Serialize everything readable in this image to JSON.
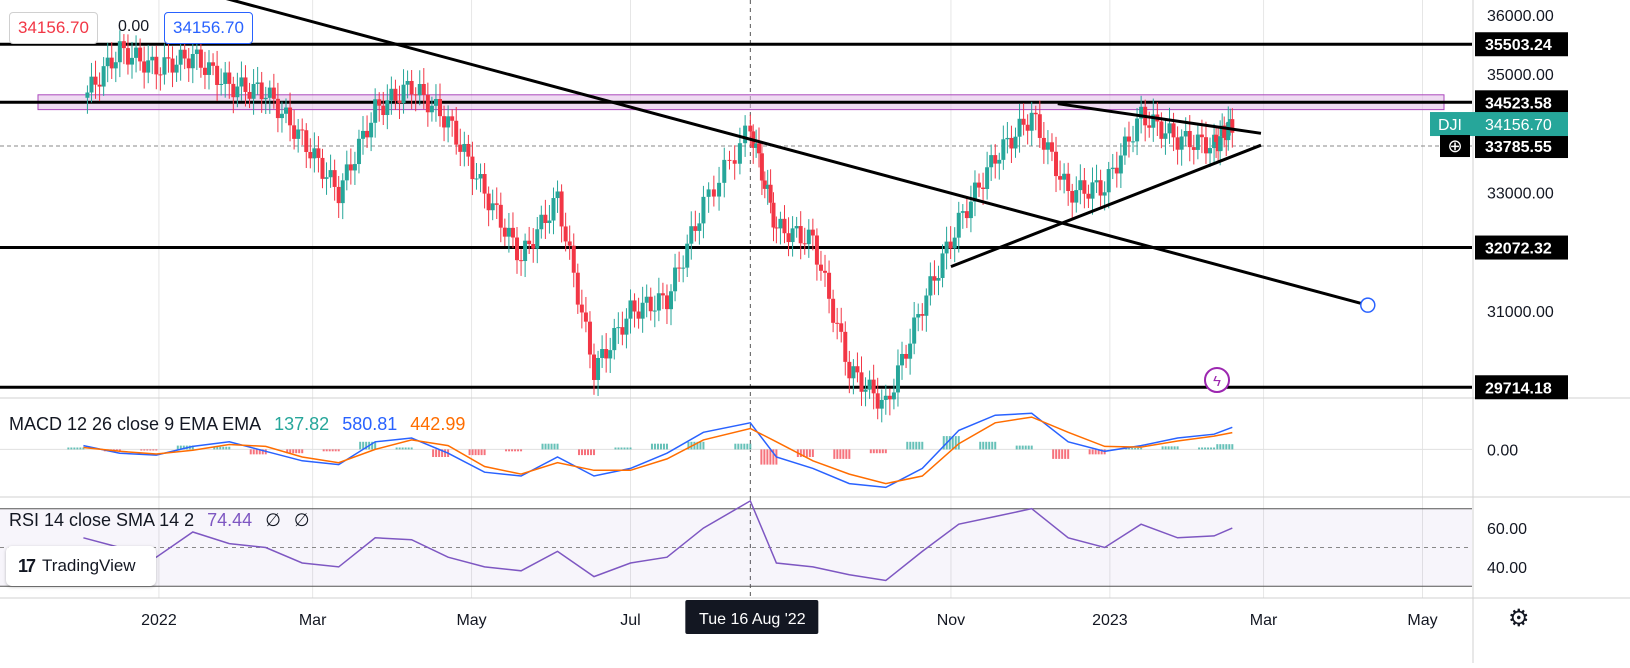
{
  "header": {
    "ohlc_open": "34156.70",
    "ohlc_change": "0.00",
    "ohlc_close": "34156.70"
  },
  "colors": {
    "up": "#26a69a",
    "down": "#f23645",
    "macd_line": "#2962ff",
    "signal_line": "#ff6d00",
    "rsi_line": "#7e57c2",
    "resistance_zone_fill": "#e1bee7",
    "resistance_zone_border": "#ab47bc",
    "trendline": "#000000",
    "symbol_badge": "#26a69a"
  },
  "branding": {
    "logo_text": "TradingView"
  },
  "chart_data": [
    {
      "type": "candlestick",
      "symbol": "DJI",
      "x": [
        "2021-12-03",
        "2021-12-17",
        "2021-12-31",
        "2022-01-14",
        "2022-01-28",
        "2022-02-11",
        "2022-02-25",
        "2022-03-11",
        "2022-03-25",
        "2022-04-08",
        "2022-04-22",
        "2022-05-06",
        "2022-05-20",
        "2022-06-03",
        "2022-06-17",
        "2022-07-01",
        "2022-07-15",
        "2022-07-29",
        "2022-08-16",
        "2022-08-26",
        "2022-09-09",
        "2022-09-23",
        "2022-10-07",
        "2022-10-21",
        "2022-11-04",
        "2022-11-18",
        "2022-12-02",
        "2022-12-16",
        "2022-12-30",
        "2023-01-13",
        "2023-01-27",
        "2023-02-10",
        "2023-02-17"
      ],
      "close": [
        34600,
        35400,
        35100,
        35300,
        34800,
        34700,
        33900,
        33000,
        34400,
        34800,
        34200,
        33000,
        31900,
        32900,
        30000,
        31000,
        31200,
        32800,
        34100,
        32400,
        32200,
        30000,
        29400,
        31100,
        32500,
        33600,
        34300,
        33000,
        33100,
        34300,
        33900,
        33800,
        34156.7
      ],
      "y_axis_ticks": [
        "36000.00",
        "35000.00",
        "33000.00",
        "31000.00"
      ],
      "x_axis_ticks": [
        "2022",
        "Mar",
        "May",
        "Jul",
        "Nov",
        "2023",
        "Mar",
        "May"
      ],
      "crosshair_label": "Tue 16 Aug '22",
      "horizontal_levels": [
        {
          "label": "35503.24",
          "value": 35503.24
        },
        {
          "label": "34523.58",
          "value": 34523.58
        },
        {
          "label": "33785.55",
          "value": 33785.55,
          "dashed": true
        },
        {
          "label": "32072.32",
          "value": 32072.32
        },
        {
          "label": "29714.18",
          "value": 29714.18
        }
      ],
      "last_price": {
        "symbol": "DJI",
        "value": "34156.70"
      },
      "resistance_zone": [
        34400,
        34650
      ],
      "trendlines": [
        {
          "from": [
            "2021-11-01",
            37300
          ],
          "to": [
            "2023-04-10",
            31100
          ]
        },
        {
          "from": [
            "2022-12-12",
            34500
          ],
          "to": [
            "2023-02-28",
            34000
          ]
        },
        {
          "from": [
            "2022-11-01",
            31750
          ],
          "to": [
            "2023-02-28",
            33800
          ]
        }
      ],
      "ylim": [
        29550,
        36250
      ]
    },
    {
      "type": "line",
      "name": "MACD",
      "legend": "MACD 12 26 close 9 EMA EMA",
      "values": [
        "137.82",
        "580.81",
        "442.99"
      ],
      "y_axis_ticks": [
        "0.00"
      ],
      "macd": [
        100,
        -100,
        -150,
        80,
        200,
        -50,
        -300,
        -400,
        200,
        300,
        -100,
        -600,
        -700,
        -200,
        -700,
        -500,
        -100,
        450,
        700,
        -200,
        -500,
        -900,
        -1000,
        -500,
        500,
        900,
        950,
        200,
        -50,
        100,
        300,
        400,
        580.81
      ],
      "signal": [
        50,
        -50,
        -120,
        -20,
        130,
        80,
        -200,
        -350,
        0,
        250,
        100,
        -450,
        -650,
        -350,
        -550,
        -550,
        -250,
        250,
        550,
        200,
        -300,
        -650,
        -900,
        -700,
        150,
        700,
        850,
        450,
        80,
        60,
        220,
        350,
        442.99
      ],
      "ylim": [
        -1200,
        1300
      ]
    },
    {
      "type": "line",
      "name": "RSI",
      "legend": "RSI 14 close SMA 14 2",
      "values": [
        "74.44",
        "∅",
        "∅"
      ],
      "y_axis_ticks": [
        "60.00",
        "40.00"
      ],
      "rsi": [
        55,
        50,
        45,
        58,
        52,
        50,
        42,
        40,
        55,
        54,
        45,
        40,
        38,
        48,
        35,
        42,
        45,
        60,
        74,
        42,
        40,
        36,
        33,
        48,
        62,
        66,
        70,
        55,
        50,
        62,
        55,
        56,
        60
      ],
      "bands": [
        70,
        30
      ],
      "midline": 50,
      "ylim": [
        25,
        75
      ]
    }
  ]
}
